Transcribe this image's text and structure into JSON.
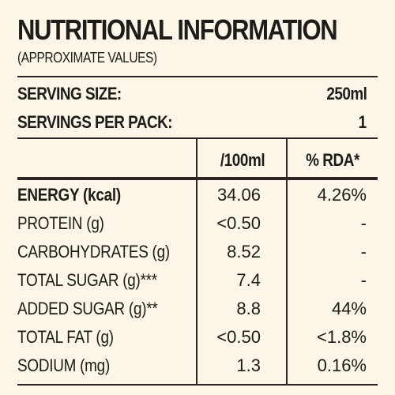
{
  "title": "NUTRITIONAL INFORMATION",
  "subtitle": "(APPROXIMATE VALUES)",
  "serving": {
    "size_label": "SERVING SIZE:",
    "size_value": "250ml",
    "per_pack_label": "SERVINGS PER PACK:",
    "per_pack_value": "1"
  },
  "columns": {
    "per_100ml": "/100ml",
    "rda": "% RDA*"
  },
  "rows": [
    {
      "name": "ENERGY (kcal)",
      "per_100ml": "34.06",
      "rda": "4.26%"
    },
    {
      "name": "PROTEIN (g)",
      "per_100ml": "<0.50",
      "rda": "-"
    },
    {
      "name": "CARBOHYDRATES (g)",
      "per_100ml": "8.52",
      "rda": "-"
    },
    {
      "name": "TOTAL SUGAR (g)***",
      "per_100ml": "7.4",
      "rda": "-"
    },
    {
      "name": "ADDED SUGAR (g)**",
      "per_100ml": "8.8",
      "rda": "44%"
    },
    {
      "name": "TOTAL FAT (g)",
      "per_100ml": "<0.50",
      "rda": "<1.8%"
    },
    {
      "name": "SODIUM (mg)",
      "per_100ml": "1.3",
      "rda": "0.16%"
    }
  ]
}
